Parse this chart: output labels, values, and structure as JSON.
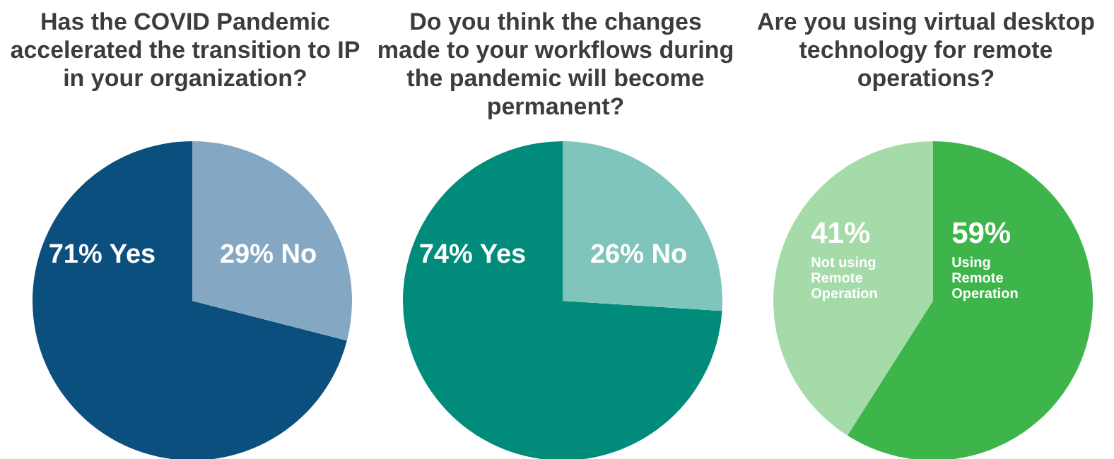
{
  "chart_data": [
    {
      "type": "pie",
      "title": "Has the COVID Pandemic accelerated the transition to IP in your organization?",
      "categories": [
        "Yes",
        "No"
      ],
      "values": [
        71,
        29
      ],
      "colors": [
        "#0b4f7f",
        "#84a8c4"
      ],
      "value_labels": [
        "71%",
        "29%"
      ]
    },
    {
      "type": "pie",
      "title": "Do you think the changes made to your workflows during the pandemic will become permanent?",
      "categories": [
        "Yes",
        "No"
      ],
      "values": [
        74,
        26
      ],
      "colors": [
        "#008b7b",
        "#80c5bc"
      ],
      "value_labels": [
        "74%",
        "26%"
      ]
    },
    {
      "type": "pie",
      "title": "Are you using virtual desktop technology for remote operations?",
      "categories": [
        "Not using Remote Operation",
        "Using Remote Operation"
      ],
      "values": [
        41,
        59
      ],
      "colors": [
        "#a5dba8",
        "#3db54a"
      ],
      "value_labels": [
        "41%",
        "59%"
      ]
    }
  ]
}
